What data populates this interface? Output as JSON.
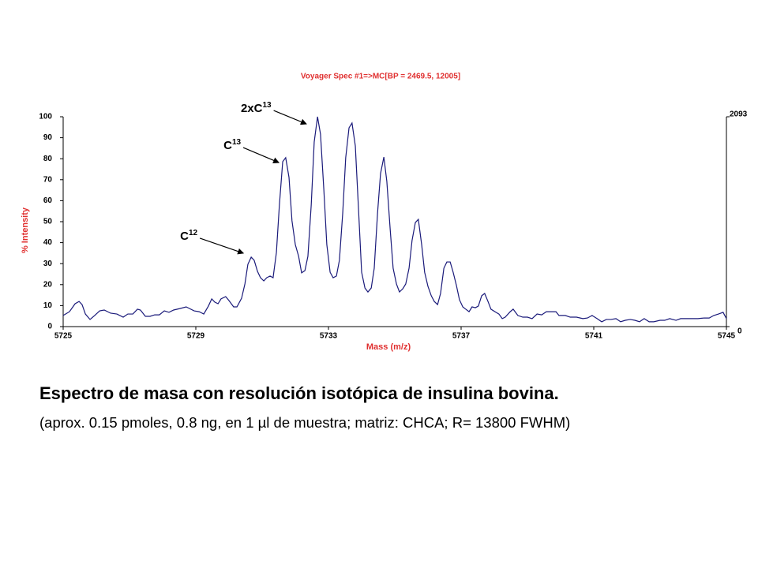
{
  "chart_data": {
    "type": "line",
    "title": "Voyager Spec #1=>MC[BP = 2469.5, 12005]",
    "x_label": "Mass (m/z)",
    "y_label": "% Intensity",
    "xlim": [
      5725,
      5745
    ],
    "xticks": [
      5725,
      5729,
      5733,
      5737,
      5741,
      5745
    ],
    "ylim": [
      0,
      100
    ],
    "yticks": [
      0,
      10,
      20,
      30,
      40,
      50,
      60,
      70,
      80,
      90,
      100
    ],
    "y2lim": [
      0,
      2093
    ],
    "y2ticks": [
      0,
      2093
    ],
    "color": "#1a1a7a",
    "x": [
      5725.0,
      5725.19,
      5725.36,
      5725.48,
      5725.57,
      5725.67,
      5725.81,
      5725.95,
      5726.1,
      5726.24,
      5726.43,
      5726.62,
      5726.81,
      5726.95,
      5727.1,
      5727.24,
      5727.33,
      5727.48,
      5727.62,
      5727.76,
      5727.9,
      5728.05,
      5728.19,
      5728.33,
      5728.52,
      5728.71,
      5728.81,
      5728.95,
      5729.1,
      5729.24,
      5729.38,
      5729.48,
      5729.57,
      5729.67,
      5729.76,
      5729.9,
      5730.0,
      5730.14,
      5730.24,
      5730.38,
      5730.48,
      5730.57,
      5730.67,
      5730.76,
      5730.86,
      5730.95,
      5731.05,
      5731.14,
      5731.24,
      5731.33,
      5731.43,
      5731.52,
      5731.62,
      5731.71,
      5731.81,
      5731.9,
      5732.0,
      5732.1,
      5732.19,
      5732.29,
      5732.38,
      5732.48,
      5732.57,
      5732.67,
      5732.76,
      5732.86,
      5732.95,
      5733.05,
      5733.14,
      5733.24,
      5733.33,
      5733.43,
      5733.52,
      5733.62,
      5733.71,
      5733.81,
      5733.9,
      5734.0,
      5734.1,
      5734.19,
      5734.29,
      5734.38,
      5734.48,
      5734.57,
      5734.67,
      5734.76,
      5734.86,
      5734.95,
      5735.05,
      5735.14,
      5735.24,
      5735.33,
      5735.43,
      5735.52,
      5735.62,
      5735.71,
      5735.81,
      5735.9,
      5736.0,
      5736.1,
      5736.19,
      5736.29,
      5736.38,
      5736.48,
      5736.57,
      5736.67,
      5736.76,
      5736.86,
      5736.95,
      5737.05,
      5737.14,
      5737.24,
      5737.33,
      5737.43,
      5737.52,
      5737.62,
      5737.71,
      5737.81,
      5737.9,
      5738.05,
      5738.14,
      5738.24,
      5738.33,
      5738.48,
      5738.57,
      5738.71,
      5738.86,
      5739.0,
      5739.14,
      5739.29,
      5739.43,
      5739.57,
      5739.71,
      5739.86,
      5739.95,
      5740.14,
      5740.29,
      5740.48,
      5740.67,
      5740.81,
      5740.95,
      5741.1,
      5741.24,
      5741.38,
      5741.52,
      5741.67,
      5741.81,
      5741.95,
      5742.1,
      5742.24,
      5742.38,
      5742.52,
      5742.67,
      5742.81,
      5743.0,
      5743.14,
      5743.29,
      5743.48,
      5743.62,
      5743.81,
      5743.95,
      5744.14,
      5744.33,
      5744.48,
      5744.62,
      5744.76,
      5744.9,
      5745.0
    ],
    "values": [
      5.3,
      7.1,
      10.9,
      12.0,
      10.5,
      6.0,
      3.4,
      5.3,
      7.5,
      7.9,
      6.4,
      6.0,
      4.5,
      6.0,
      6.0,
      8.3,
      7.9,
      4.9,
      4.9,
      5.6,
      5.6,
      7.5,
      6.8,
      7.9,
      8.6,
      9.4,
      8.6,
      7.5,
      7.1,
      6.0,
      9.8,
      13.2,
      11.7,
      10.9,
      13.2,
      14.3,
      12.4,
      9.4,
      9.4,
      13.5,
      20.3,
      29.7,
      33.1,
      31.6,
      26.3,
      23.3,
      21.8,
      23.3,
      24.1,
      23.3,
      35.3,
      57.9,
      78.6,
      80.5,
      71.1,
      50.4,
      39.1,
      33.5,
      25.6,
      26.7,
      33.5,
      57.9,
      88.0,
      100,
      91.7,
      65.4,
      39.1,
      25.9,
      23.3,
      24.1,
      31.6,
      54.1,
      80.5,
      94.7,
      97.0,
      86.1,
      57.9,
      25.9,
      18.4,
      16.5,
      18.4,
      27.8,
      54.1,
      72.9,
      80.8,
      69.2,
      46.6,
      27.8,
      20.3,
      16.5,
      18.0,
      20.3,
      27.8,
      41.0,
      49.6,
      51.1,
      39.1,
      25.9,
      19.2,
      14.7,
      12.0,
      10.5,
      15.8,
      27.8,
      30.8,
      30.8,
      25.9,
      19.5,
      12.8,
      9.4,
      8.3,
      7.1,
      9.4,
      9.0,
      9.8,
      14.7,
      15.8,
      12.0,
      8.3,
      6.8,
      6.0,
      3.8,
      4.5,
      7.1,
      8.3,
      5.3,
      4.5,
      4.5,
      3.8,
      6.0,
      5.6,
      7.1,
      7.1,
      7.1,
      5.3,
      5.3,
      4.5,
      4.5,
      3.8,
      4.1,
      5.3,
      3.8,
      2.3,
      3.4,
      3.4,
      3.8,
      2.3,
      3.0,
      3.4,
      3.0,
      2.3,
      3.8,
      2.3,
      2.3,
      3.0,
      3.0,
      3.8,
      3.0,
      3.8,
      3.8,
      3.8,
      3.8,
      4.1,
      4.1,
      5.3,
      6.0,
      6.8,
      3.8
    ],
    "annotations": [
      {
        "text": "C",
        "sup": "12",
        "x": 5730.48,
        "y": 34.6
      },
      {
        "text": "C",
        "sup": "13",
        "x": 5731.55,
        "y": 77.8
      },
      {
        "text": "2xC",
        "sup": "13",
        "x": 5732.38,
        "y": 96.2
      }
    ],
    "caption": [
      "Espectro de masa con resolución isotópica de insulina bovina.",
      "(aprox. 0.15 pmoles, 0.8 ng, en 1 µl de muestra; matriz: CHCA; R= 13800 FWHM)"
    ]
  }
}
